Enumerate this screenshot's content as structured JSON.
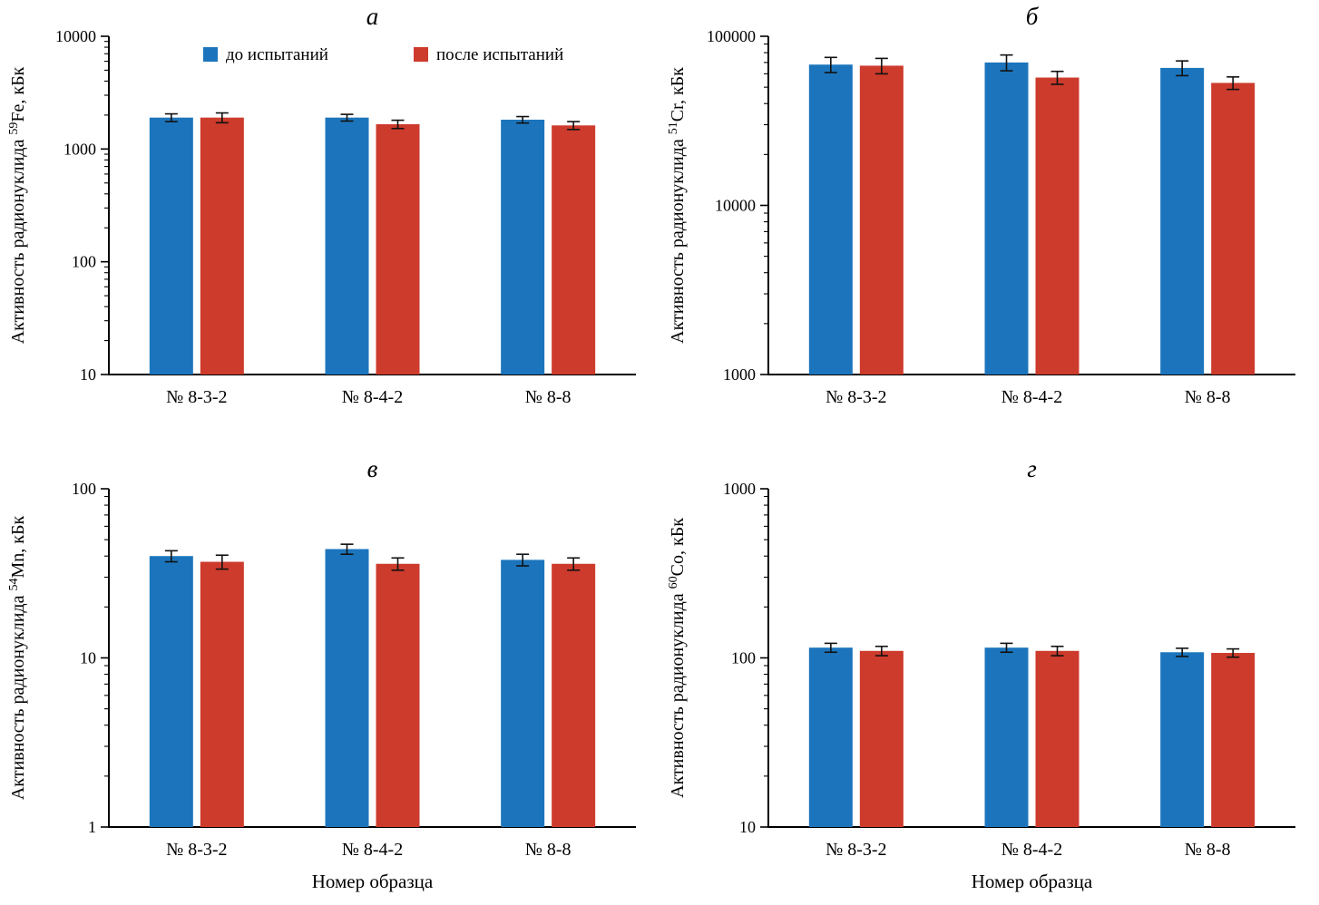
{
  "figure": {
    "background": "#ffffff",
    "description": "Four-panel bar figure of radionuclide activity before/after tests"
  },
  "colors": {
    "before": "#1c75bc",
    "after": "#cd3b2c",
    "axis": "#000000",
    "error_bar": "#111111"
  },
  "legend": {
    "items": [
      {
        "label": "до испытаний",
        "color": "#1c75bc"
      },
      {
        "label": "после испытаний",
        "color": "#cd3b2c"
      }
    ]
  },
  "chart_data": [
    {
      "type": "bar",
      "panel_label": "а",
      "yscale": "log",
      "ylim": [
        10,
        10000
      ],
      "yticks": [
        10,
        100,
        1000,
        10000
      ],
      "ylabel": {
        "prefix": "Активность радионуклида",
        "isotope": "59",
        "element": "Fe",
        "suffix": ", кБк"
      },
      "xlabel": "",
      "categories": [
        "№ 8-3-2",
        "№ 8-4-2",
        "№ 8-8"
      ],
      "series": [
        {
          "name": "до испытаний",
          "color": "#1c75bc",
          "values": [
            1900,
            1900,
            1820
          ],
          "errors": [
            150,
            130,
            120
          ]
        },
        {
          "name": "после испытаний",
          "color": "#cd3b2c",
          "values": [
            1900,
            1660,
            1620
          ],
          "errors": [
            190,
            140,
            130
          ]
        }
      ],
      "show_legend": true,
      "grid": false,
      "legend_position": "upper-left-inside"
    },
    {
      "type": "bar",
      "panel_label": "б",
      "yscale": "log",
      "ylim": [
        1000,
        100000
      ],
      "yticks": [
        1000,
        10000,
        100000
      ],
      "ylabel": {
        "prefix": "Активность радионуклида",
        "isotope": "51",
        "element": "Cr",
        "suffix": ", кБк"
      },
      "xlabel": "",
      "categories": [
        "№ 8-3-2",
        "№ 8-4-2",
        "№ 8-8"
      ],
      "series": [
        {
          "name": "до испытаний",
          "color": "#1c75bc",
          "values": [
            68000,
            70000,
            65000
          ],
          "errors": [
            7000,
            7500,
            6500
          ]
        },
        {
          "name": "после испытаний",
          "color": "#cd3b2c",
          "values": [
            67000,
            57000,
            53000
          ],
          "errors": [
            7000,
            5000,
            4500
          ]
        }
      ],
      "show_legend": false,
      "grid": false
    },
    {
      "type": "bar",
      "panel_label": "в",
      "yscale": "log",
      "ylim": [
        1,
        100
      ],
      "yticks": [
        1,
        10,
        100
      ],
      "ylabel": {
        "prefix": "Активность радионуклида",
        "isotope": "54",
        "element": "Mn",
        "suffix": ", кБк"
      },
      "xlabel": "Номер образца",
      "categories": [
        "№ 8-3-2",
        "№ 8-4-2",
        "№ 8-8"
      ],
      "series": [
        {
          "name": "до испытаний",
          "color": "#1c75bc",
          "values": [
            40,
            44,
            38
          ],
          "errors": [
            3,
            3,
            3
          ]
        },
        {
          "name": "после испытаний",
          "color": "#cd3b2c",
          "values": [
            37,
            36,
            36
          ],
          "errors": [
            3.5,
            3,
            3
          ]
        }
      ],
      "show_legend": false,
      "grid": false
    },
    {
      "type": "bar",
      "panel_label": "г",
      "yscale": "log",
      "ylim": [
        10,
        1000
      ],
      "yticks": [
        10,
        100,
        1000
      ],
      "ylabel": {
        "prefix": "Активность радионуклида",
        "isotope": "60",
        "element": "Co",
        "suffix": ", кБк"
      },
      "xlabel": "Номер образца",
      "categories": [
        "№ 8-3-2",
        "№ 8-4-2",
        "№ 8-8"
      ],
      "series": [
        {
          "name": "до испытаний",
          "color": "#1c75bc",
          "values": [
            115,
            115,
            108
          ],
          "errors": [
            7,
            7,
            6
          ]
        },
        {
          "name": "после испытаний",
          "color": "#cd3b2c",
          "values": [
            110,
            110,
            107
          ],
          "errors": [
            7,
            7,
            6
          ]
        }
      ],
      "show_legend": false,
      "grid": false
    }
  ]
}
